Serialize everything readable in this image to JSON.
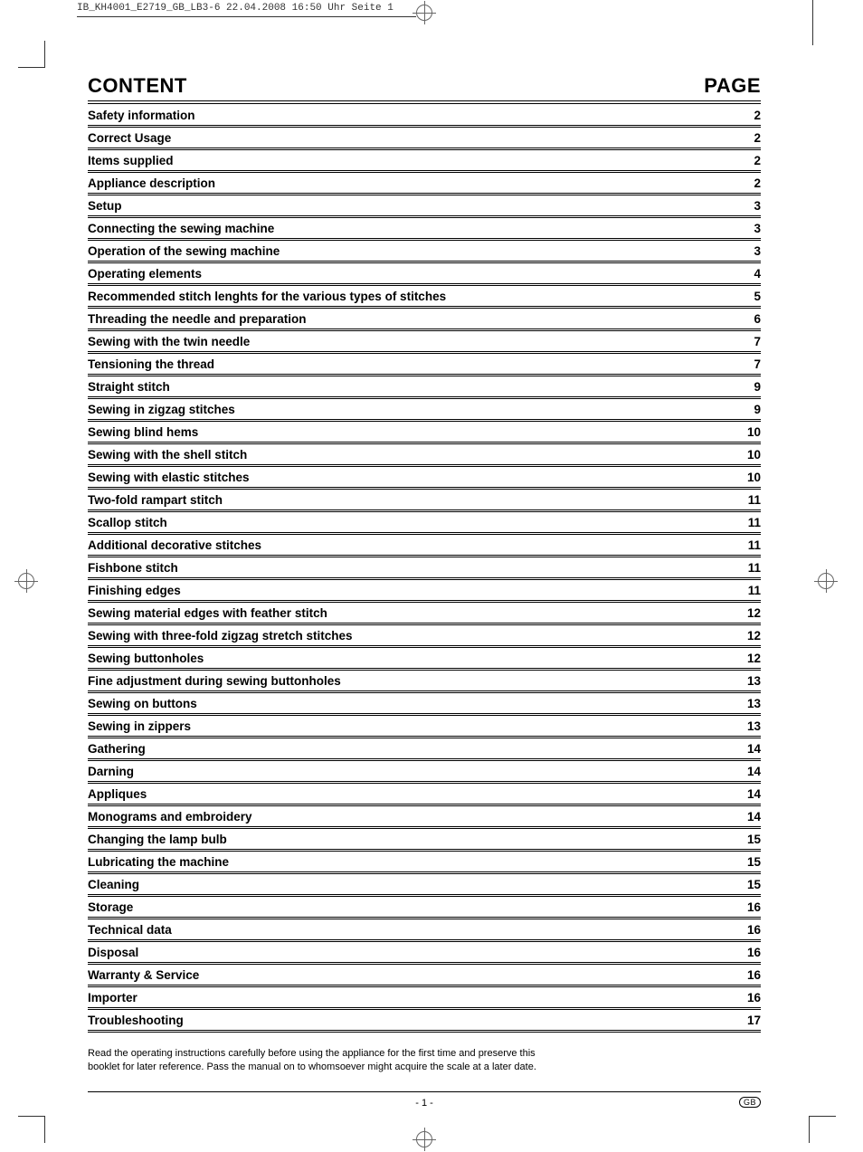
{
  "print_meta": "IB_KH4001_E2719_GB_LB3-6  22.04.2008  16:50 Uhr  Seite 1",
  "header": {
    "content_label": "CONTENT",
    "page_label": "PAGE"
  },
  "toc": [
    {
      "title": "Safety information",
      "page": "2"
    },
    {
      "title": "Correct Usage",
      "page": "2"
    },
    {
      "title": "Items supplied",
      "page": "2"
    },
    {
      "title": "Appliance description",
      "page": "2"
    },
    {
      "title": "Setup",
      "page": "3"
    },
    {
      "title": "Connecting the sewing machine",
      "page": "3"
    },
    {
      "title": "Operation of the sewing machine",
      "page": "3"
    },
    {
      "title": "Operating elements",
      "page": "4"
    },
    {
      "title": "Recommended stitch lenghts for the various types of stitches",
      "page": "5"
    },
    {
      "title": "Threading the needle and preparation",
      "page": "6"
    },
    {
      "title": "Sewing with the twin needle",
      "page": "7"
    },
    {
      "title": "Tensioning the thread",
      "page": "7"
    },
    {
      "title": "Straight stitch",
      "page": "9"
    },
    {
      "title": "Sewing in zigzag stitches",
      "page": "9"
    },
    {
      "title": "Sewing blind hems",
      "page": "10"
    },
    {
      "title": "Sewing with the shell stitch",
      "page": "10"
    },
    {
      "title": "Sewing with elastic stitches",
      "page": "10"
    },
    {
      "title": "Two-fold rampart stitch",
      "page": "11"
    },
    {
      "title": "Scallop stitch",
      "page": "11"
    },
    {
      "title": "Additional decorative stitches",
      "page": "11"
    },
    {
      "title": "Fishbone stitch",
      "page": "11"
    },
    {
      "title": "Finishing edges",
      "page": "11"
    },
    {
      "title": "Sewing material edges with feather stitch",
      "page": "12"
    },
    {
      "title": "Sewing with three-fold zigzag stretch stitches",
      "page": "12"
    },
    {
      "title": "Sewing buttonholes",
      "page": "12"
    },
    {
      "title": "Fine adjustment during sewing buttonholes",
      "page": "13"
    },
    {
      "title": "Sewing on buttons",
      "page": "13"
    },
    {
      "title": "Sewing in zippers",
      "page": "13"
    },
    {
      "title": "Gathering",
      "page": "14"
    },
    {
      "title": "Darning",
      "page": "14"
    },
    {
      "title": "Appliques",
      "page": "14"
    },
    {
      "title": "Monograms and embroidery",
      "page": "14"
    },
    {
      "title": "Changing the lamp bulb",
      "page": "15"
    },
    {
      "title": "Lubricating the machine",
      "page": "15"
    },
    {
      "title": "Cleaning",
      "page": "15"
    },
    {
      "title": "Storage",
      "page": "16"
    },
    {
      "title": "Technical data",
      "page": "16"
    },
    {
      "title": "Disposal",
      "page": "16"
    },
    {
      "title": "Warranty & Service",
      "page": "16"
    },
    {
      "title": "Importer",
      "page": "16"
    },
    {
      "title": "Troubleshooting",
      "page": "17"
    }
  ],
  "footer_note_line1": "Read the operating instructions carefully before using the appliance for the first time and preserve this",
  "footer_note_line2": "booklet for later reference. Pass the manual on to whomsoever might acquire the scale at a later date.",
  "page_number": "- 1 -",
  "region_badge": "GB",
  "colors": {
    "text": "#000000",
    "background": "#ffffff",
    "rule": "#000000"
  },
  "typography": {
    "heading_fontsize_pt": 17,
    "row_fontsize_pt": 10,
    "footer_fontsize_pt": 8,
    "font_family": "Arial"
  }
}
